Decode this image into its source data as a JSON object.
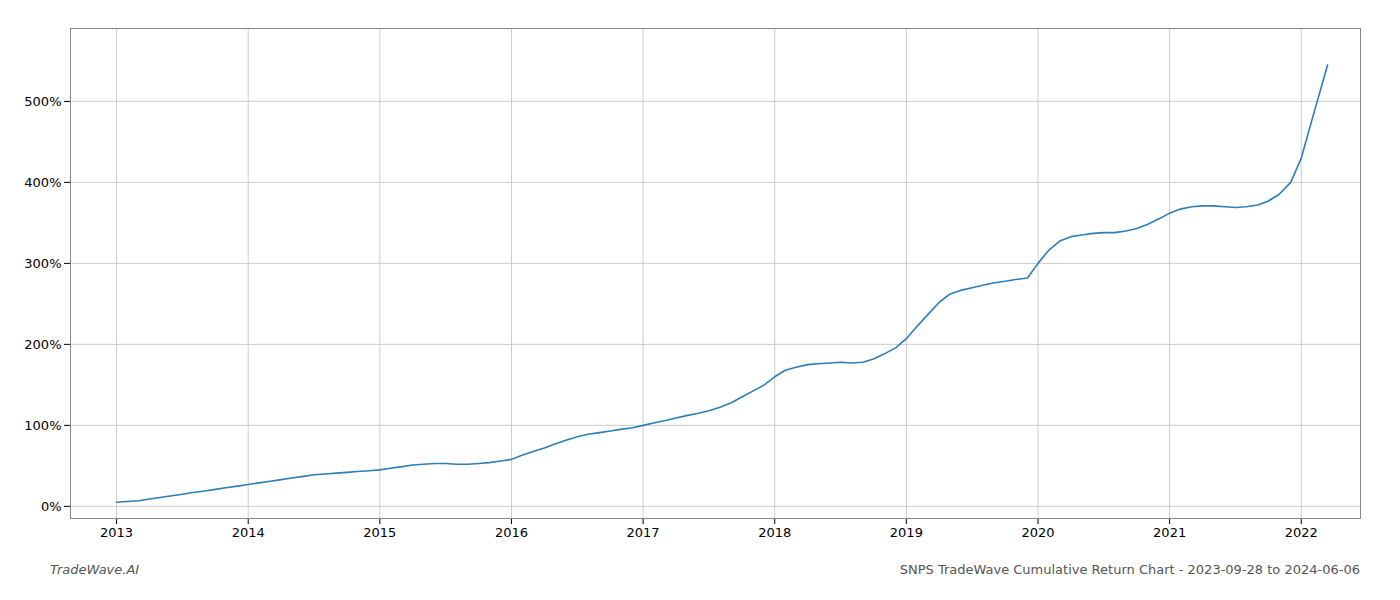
{
  "chart_data": {
    "type": "line",
    "title": "SNPS TradeWave Cumulative Return Chart - 2023-09-28 to 2024-06-06",
    "annotations": [
      "TradeWave.AI"
    ],
    "color": "#2d7eb5",
    "grid": true,
    "x": [
      2013.0,
      2013.08,
      2013.17,
      2013.25,
      2013.33,
      2013.42,
      2013.5,
      2013.58,
      2013.67,
      2013.75,
      2013.83,
      2013.92,
      2014.0,
      2014.08,
      2014.17,
      2014.25,
      2014.33,
      2014.42,
      2014.5,
      2014.58,
      2014.67,
      2014.75,
      2014.83,
      2014.92,
      2015.0,
      2015.08,
      2015.17,
      2015.25,
      2015.33,
      2015.42,
      2015.5,
      2015.58,
      2015.67,
      2015.75,
      2015.83,
      2015.92,
      2016.0,
      2016.08,
      2016.17,
      2016.25,
      2016.33,
      2016.42,
      2016.5,
      2016.58,
      2016.67,
      2016.75,
      2016.83,
      2016.92,
      2017.0,
      2017.08,
      2017.17,
      2017.25,
      2017.33,
      2017.42,
      2017.5,
      2017.58,
      2017.67,
      2017.75,
      2017.83,
      2017.92,
      2018.0,
      2018.08,
      2018.17,
      2018.25,
      2018.33,
      2018.42,
      2018.5,
      2018.58,
      2018.67,
      2018.75,
      2018.83,
      2018.92,
      2019.0,
      2019.08,
      2019.17,
      2019.25,
      2019.33,
      2019.42,
      2019.5,
      2019.58,
      2019.67,
      2019.75,
      2019.83,
      2019.92,
      2020.0,
      2020.08,
      2020.17,
      2020.25,
      2020.33,
      2020.42,
      2020.5,
      2020.58,
      2020.67,
      2020.75,
      2020.83,
      2020.92,
      2021.0,
      2021.08,
      2021.17,
      2021.25,
      2021.33,
      2021.42,
      2021.5,
      2021.58,
      2021.67,
      2021.75,
      2021.83,
      2021.92,
      2022.0,
      2022.1,
      2022.2
    ],
    "values": [
      5,
      6,
      7,
      9,
      11,
      13,
      15,
      17,
      19,
      21,
      23,
      25,
      27,
      29,
      31,
      33,
      35,
      37,
      39,
      40,
      41,
      42,
      43,
      44,
      45,
      47,
      49,
      51,
      52,
      53,
      53,
      52,
      52,
      53,
      54,
      56,
      58,
      63,
      68,
      72,
      77,
      82,
      86,
      89,
      91,
      93,
      95,
      97,
      100,
      103,
      106,
      109,
      112,
      115,
      118,
      122,
      128,
      135,
      142,
      150,
      160,
      168,
      172,
      175,
      176,
      177,
      178,
      177,
      178,
      182,
      188,
      196,
      207,
      222,
      238,
      252,
      262,
      267,
      270,
      273,
      276,
      278,
      280,
      282,
      300,
      316,
      328,
      333,
      335,
      337,
      338,
      338,
      340,
      343,
      348,
      355,
      362,
      367,
      370,
      371,
      371,
      370,
      369,
      370,
      372,
      377,
      385,
      400,
      430,
      488,
      545
    ],
    "xlim": [
      2012.65,
      2022.45
    ],
    "xticks": [
      2013,
      2014,
      2015,
      2016,
      2017,
      2018,
      2019,
      2020,
      2021,
      2022
    ],
    "ylim": [
      -15,
      590
    ],
    "yticks": [
      {
        "value": 0,
        "label": "0%"
      },
      {
        "value": 100,
        "label": "100%"
      },
      {
        "value": 200,
        "label": "200%"
      },
      {
        "value": 300,
        "label": "300%"
      },
      {
        "value": 400,
        "label": "400%"
      },
      {
        "value": 500,
        "label": "500%"
      }
    ]
  }
}
